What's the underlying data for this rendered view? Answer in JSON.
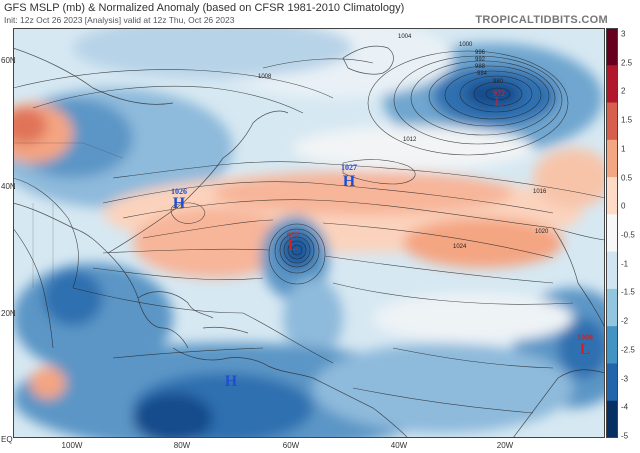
{
  "header": {
    "title": "GFS MSLP (mb) & Normalized Anomaly (based on CFSR 1981-2010 Climatology)",
    "subtitle": "Init: 12z Oct 26 2023   [Analysis]   valid at 12z Thu, Oct 26 2023",
    "brand": "TROPICALTIDBITS.COM"
  },
  "lat_labels": [
    "60N",
    "40N",
    "20N",
    "EQ"
  ],
  "lon_labels": [
    "100W",
    "80W",
    "60W",
    "40W",
    "20W"
  ],
  "colorbar": {
    "ticks": [
      "3",
      "2.5",
      "2",
      "1.5",
      "1",
      "0.5",
      "0",
      "-0.5",
      "-1",
      "-1.5",
      "-2",
      "-2.5",
      "-3",
      "-4",
      "-5"
    ],
    "colors": [
      "#67001f",
      "#b2182b",
      "#d6604d",
      "#f4a582",
      "#fddbc7",
      "#f7f7f7",
      "#d1e5f0",
      "#92c5de",
      "#4393c3",
      "#2166ac",
      "#053061"
    ]
  },
  "centers": [
    {
      "letter": "H",
      "value": "1027",
      "color": "#1f4fd1"
    },
    {
      "letter": "H",
      "value": "1026",
      "color": "#1f4fd1"
    },
    {
      "letter": "L",
      "value": "977",
      "color": "#d62020"
    },
    {
      "letter": "L",
      "value": "972",
      "color": "#d62020"
    },
    {
      "letter": "L",
      "value": "1008",
      "color": "#d62020"
    },
    {
      "letter": "H",
      "value": "",
      "color": "#1f4fd1"
    }
  ],
  "isobar_labels": [
    "1004",
    "1000",
    "996",
    "992",
    "988",
    "984",
    "980",
    "1008",
    "1012",
    "1016",
    "1020",
    "1024"
  ]
}
